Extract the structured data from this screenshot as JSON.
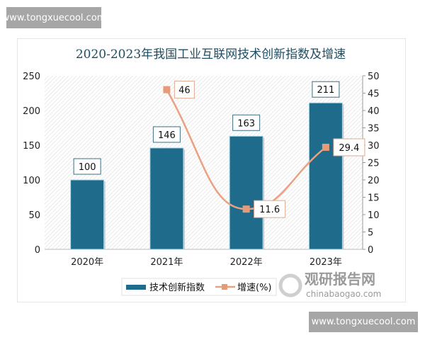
{
  "watermarks": {
    "top": "www.tongxuecool.com",
    "bottom": "www.tongxuecool.com",
    "logo_text": "观研报告网",
    "logo_url": "chinabaogao.com"
  },
  "chart_data": {
    "type": "bar+line",
    "title": "2020-2023年我国工业互联网技术创新指数及增速",
    "categories": [
      "2020年",
      "2021年",
      "2022年",
      "2023年"
    ],
    "series": [
      {
        "name": "技术创新指数",
        "type": "bar",
        "axis": "left",
        "values": [
          100,
          146,
          163,
          211
        ],
        "color": "#1f6b8c"
      },
      {
        "name": "增速(%)",
        "type": "line",
        "axis": "right",
        "values": [
          null,
          46,
          11.6,
          29.4
        ],
        "color": "#e8a283"
      }
    ],
    "y_left": {
      "range": [
        0,
        250
      ],
      "ticks": [
        0,
        50,
        100,
        150,
        200,
        250
      ]
    },
    "y_right": {
      "range": [
        0,
        50
      ],
      "ticks": [
        0,
        5,
        10,
        15,
        20,
        25,
        30,
        35,
        40,
        45,
        50
      ]
    },
    "legend_position": "bottom-left",
    "background": "diagonal-hatch"
  }
}
